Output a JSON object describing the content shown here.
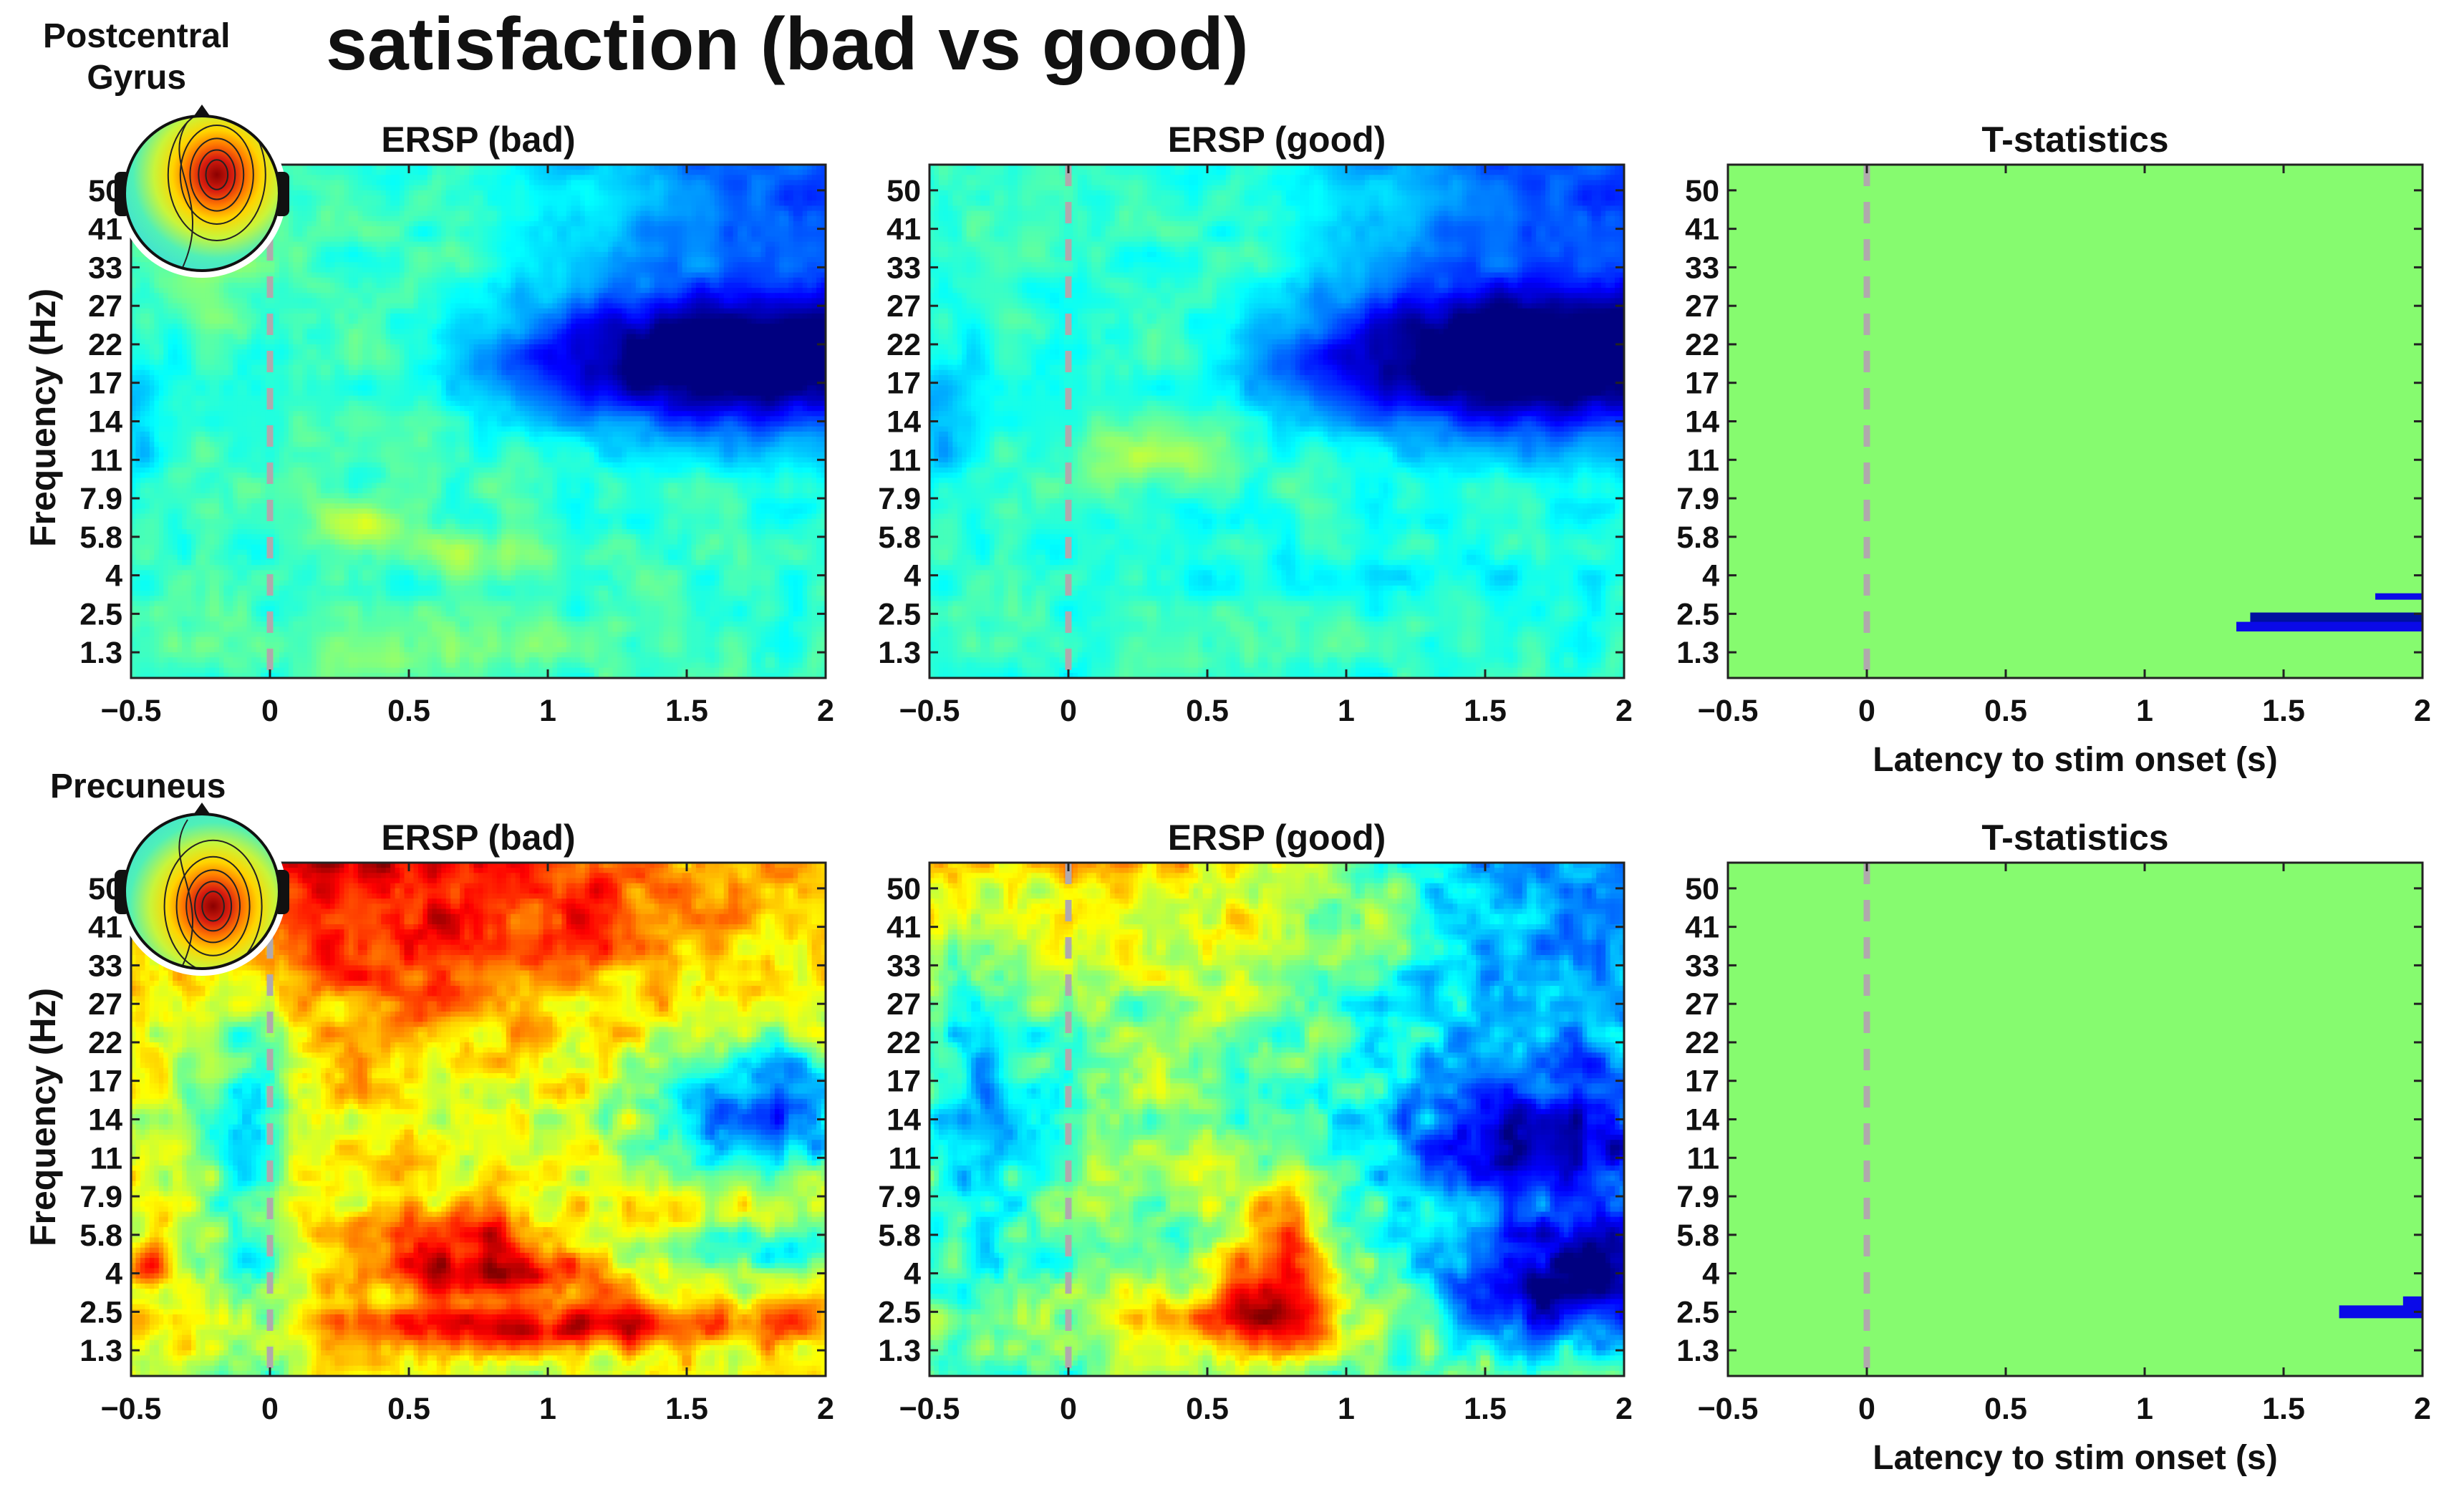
{
  "title": "satisfaction (bad vs good)",
  "rows": [
    {
      "region": "Postcentral\nGyrus",
      "region_lines": [
        "Postcentral",
        "Gyrus"
      ],
      "ylabel": "Frequency (Hz)"
    },
    {
      "region": "Precuneus",
      "region_lines": [
        "Precuneus"
      ],
      "ylabel": "Frequency (Hz)"
    }
  ],
  "chart_data": [
    {
      "type": "heatmap",
      "title": "ERSP (bad)",
      "row": 0,
      "col": 0,
      "xlabel": "",
      "ylabel": "Frequency (Hz)",
      "xlim": [
        -0.5,
        2
      ],
      "x_ticks": [
        "−0.5",
        "0",
        "0.5",
        "1",
        "1.5",
        "2"
      ],
      "x_tick_values": [
        -0.5,
        0,
        0.5,
        1,
        1.5,
        2
      ],
      "y_ticks": [
        "50",
        "41",
        "33",
        "27",
        "22",
        "17",
        "14",
        "11",
        "7.9",
        "5.8",
        "4",
        "2.5",
        "1.3"
      ],
      "stim_onset": 0,
      "pattern": "postcentral_bad"
    },
    {
      "type": "heatmap",
      "title": "ERSP (good)",
      "row": 0,
      "col": 1,
      "xlabel": "",
      "ylabel": "",
      "xlim": [
        -0.5,
        2
      ],
      "x_ticks": [
        "−0.5",
        "0",
        "0.5",
        "1",
        "1.5",
        "2"
      ],
      "x_tick_values": [
        -0.5,
        0,
        0.5,
        1,
        1.5,
        2
      ],
      "y_ticks": [
        "50",
        "41",
        "33",
        "27",
        "22",
        "17",
        "14",
        "11",
        "7.9",
        "5.8",
        "4",
        "2.5",
        "1.3"
      ],
      "stim_onset": 0,
      "pattern": "postcentral_good"
    },
    {
      "type": "heatmap",
      "title": "T-statistics",
      "row": 0,
      "col": 2,
      "xlabel": "Latency to stim onset (s)",
      "ylabel": "",
      "xlim": [
        -0.5,
        2
      ],
      "x_ticks": [
        "−0.5",
        "0",
        "0.5",
        "1",
        "1.5",
        "2"
      ],
      "x_tick_values": [
        -0.5,
        0,
        0.5,
        1,
        1.5,
        2
      ],
      "y_ticks": [
        "50",
        "41",
        "33",
        "27",
        "22",
        "17",
        "14",
        "11",
        "7.9",
        "5.8",
        "4",
        "2.5",
        "1.3"
      ],
      "stim_onset": 0,
      "background": "#86fb6f",
      "significant": [
        {
          "t0": 1.83,
          "t1": 2.0,
          "y0": 3.05,
          "y1": 3.3,
          "color": "#0a0ae8"
        },
        {
          "t0": 1.38,
          "t1": 2.0,
          "y0": 2.2,
          "y1": 2.55,
          "color": "#0010a0"
        },
        {
          "t0": 1.33,
          "t1": 2.0,
          "y0": 1.95,
          "y1": 2.25,
          "color": "#0a0ae8"
        }
      ]
    },
    {
      "type": "heatmap",
      "title": "ERSP (bad)",
      "row": 1,
      "col": 0,
      "xlabel": "",
      "ylabel": "Frequency (Hz)",
      "xlim": [
        -0.5,
        2
      ],
      "x_ticks": [
        "−0.5",
        "0",
        "0.5",
        "1",
        "1.5",
        "2"
      ],
      "x_tick_values": [
        -0.5,
        0,
        0.5,
        1,
        1.5,
        2
      ],
      "y_ticks": [
        "50",
        "41",
        "33",
        "27",
        "22",
        "17",
        "14",
        "11",
        "7.9",
        "5.8",
        "4",
        "2.5",
        "1.3"
      ],
      "stim_onset": 0,
      "pattern": "precuneus_bad"
    },
    {
      "type": "heatmap",
      "title": "ERSP (good)",
      "row": 1,
      "col": 1,
      "xlabel": "",
      "ylabel": "",
      "xlim": [
        -0.5,
        2
      ],
      "x_ticks": [
        "−0.5",
        "0",
        "0.5",
        "1",
        "1.5",
        "2"
      ],
      "x_tick_values": [
        -0.5,
        0,
        0.5,
        1,
        1.5,
        2
      ],
      "y_ticks": [
        "50",
        "41",
        "33",
        "27",
        "22",
        "17",
        "14",
        "11",
        "7.9",
        "5.8",
        "4",
        "2.5",
        "1.3"
      ],
      "stim_onset": 0,
      "pattern": "precuneus_good"
    },
    {
      "type": "heatmap",
      "title": "T-statistics",
      "row": 1,
      "col": 2,
      "xlabel": "Latency to stim onset (s)",
      "ylabel": "",
      "xlim": [
        -0.5,
        2
      ],
      "x_ticks": [
        "−0.5",
        "0",
        "0.5",
        "1",
        "1.5",
        "2"
      ],
      "x_tick_values": [
        -0.5,
        0,
        0.5,
        1,
        1.5,
        2
      ],
      "y_ticks": [
        "50",
        "41",
        "33",
        "27",
        "22",
        "17",
        "14",
        "11",
        "7.9",
        "5.8",
        "4",
        "2.5",
        "1.3"
      ],
      "stim_onset": 0,
      "background": "#86fb6f",
      "significant": [
        {
          "t0": 1.93,
          "t1": 2.0,
          "y0": 2.7,
          "y1": 3.1,
          "color": "#0a0ae8"
        },
        {
          "t0": 1.7,
          "t1": 2.0,
          "y0": 2.3,
          "y1": 2.75,
          "color": "#0a0ae8"
        }
      ]
    }
  ]
}
